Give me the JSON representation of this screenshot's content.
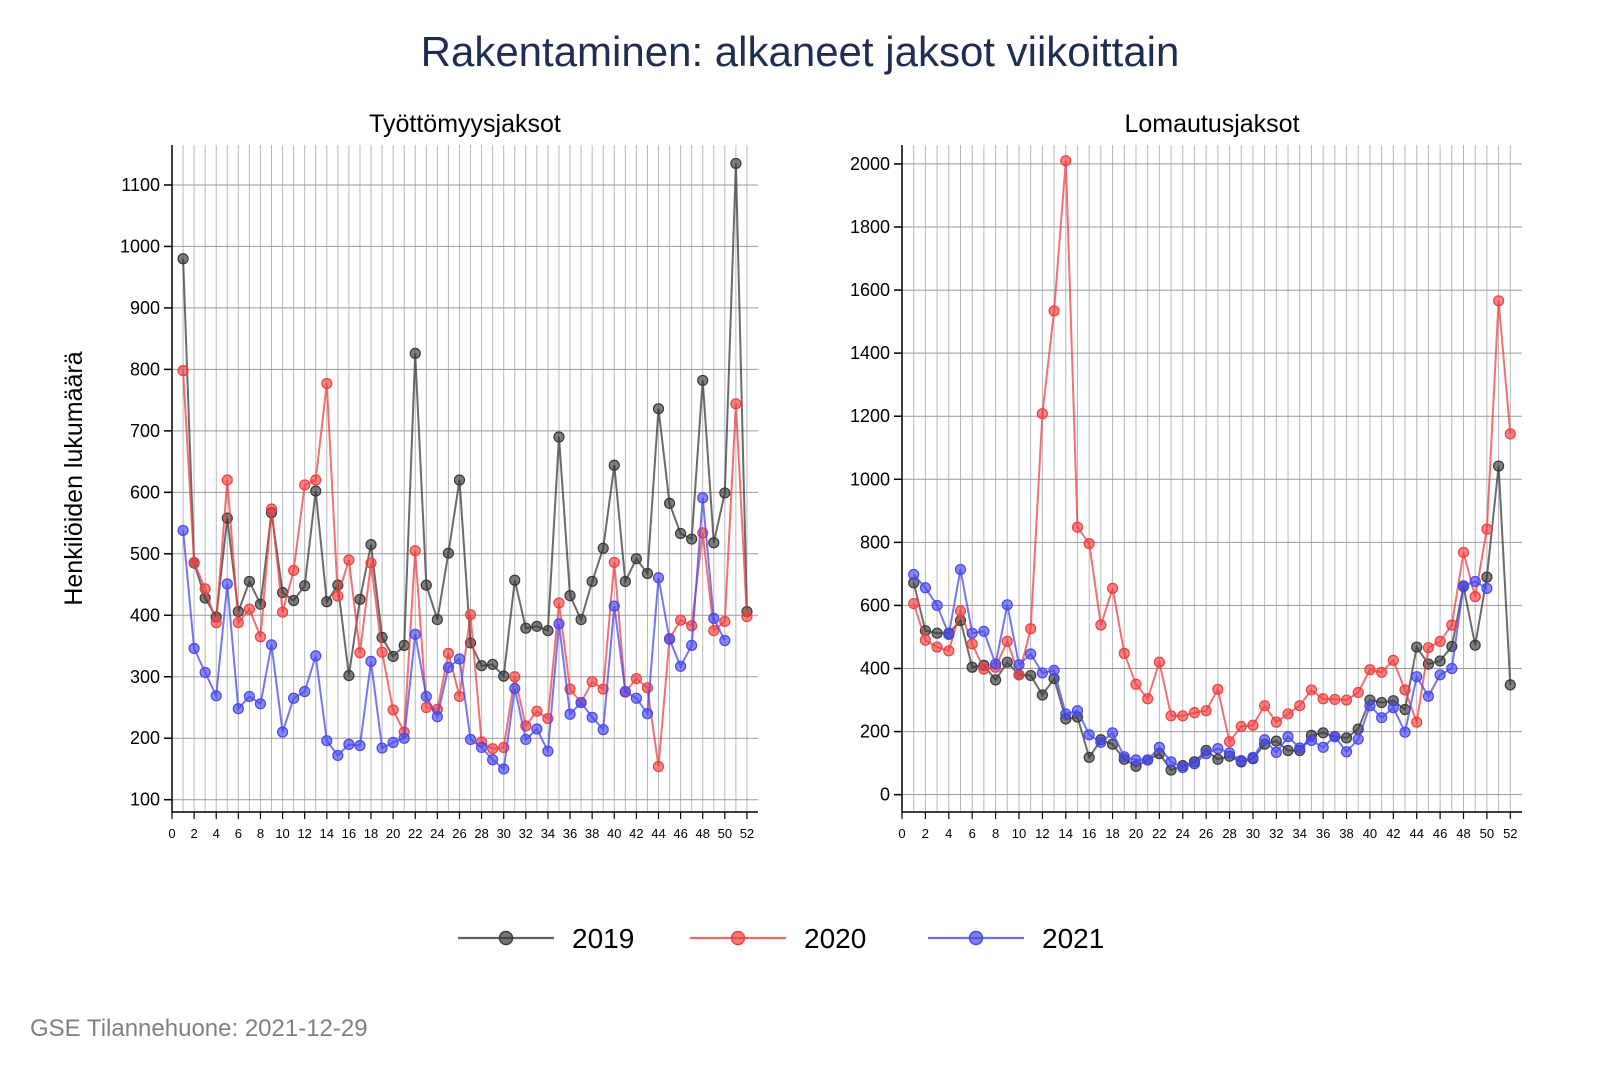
{
  "title": "Rakentaminen: alkaneet jaksot viikoittain",
  "footer": "GSE Tilannehuone: 2021-12-29",
  "colors": {
    "2019": "#3a3a3a",
    "2020": "#f04040",
    "2021": "#4848f0",
    "title": "#1f2d55"
  },
  "chart_data": [
    {
      "type": "line",
      "title": "Työttömyysjaksot",
      "xlabel": "",
      "ylabel": "Henkilöiden lukumäärä",
      "xlim": [
        0,
        53
      ],
      "ylim": [
        80,
        1165
      ],
      "xticks": [
        0,
        2,
        4,
        6,
        8,
        10,
        12,
        14,
        16,
        18,
        20,
        22,
        24,
        26,
        28,
        30,
        32,
        34,
        36,
        38,
        40,
        42,
        44,
        46,
        48,
        50,
        52
      ],
      "yticks": [
        100,
        200,
        300,
        400,
        500,
        600,
        700,
        800,
        900,
        1000,
        1100
      ],
      "grid": true,
      "series": [
        {
          "name": "2019",
          "x": [
            1,
            2,
            3,
            4,
            5,
            6,
            7,
            8,
            9,
            10,
            11,
            12,
            13,
            14,
            15,
            16,
            17,
            18,
            19,
            20,
            21,
            22,
            23,
            24,
            25,
            26,
            27,
            28,
            29,
            30,
            31,
            32,
            33,
            34,
            35,
            36,
            37,
            38,
            39,
            40,
            41,
            42,
            43,
            44,
            45,
            46,
            47,
            48,
            49,
            50,
            51,
            52
          ],
          "values": [
            980,
            485,
            428,
            397,
            558,
            406,
            455,
            418,
            567,
            437,
            424,
            448,
            602,
            422,
            449,
            302,
            426,
            515,
            364,
            333,
            351,
            826,
            449,
            393,
            501,
            620,
            355,
            318,
            320,
            301,
            457,
            379,
            382,
            375,
            690,
            432,
            393,
            455,
            509,
            644,
            455,
            492,
            468,
            736,
            582,
            533,
            524,
            782,
            518,
            599,
            1135,
            406
          ]
        },
        {
          "name": "2020",
          "x": [
            1,
            2,
            3,
            4,
            5,
            6,
            7,
            8,
            9,
            10,
            11,
            12,
            13,
            14,
            15,
            16,
            17,
            18,
            19,
            20,
            21,
            22,
            23,
            24,
            25,
            26,
            27,
            28,
            29,
            30,
            31,
            32,
            33,
            34,
            35,
            36,
            37,
            38,
            39,
            40,
            41,
            42,
            43,
            44,
            45,
            46,
            47,
            48,
            49,
            50,
            51,
            52
          ],
          "values": [
            798,
            486,
            443,
            388,
            620,
            388,
            410,
            365,
            573,
            405,
            473,
            612,
            620,
            777,
            431,
            490,
            339,
            485,
            340,
            246,
            210,
            505,
            250,
            247,
            338,
            268,
            401,
            194,
            183,
            185,
            300,
            220,
            244,
            232,
            420,
            280,
            258,
            292,
            280,
            486,
            275,
            297,
            282,
            154,
            362,
            392,
            383,
            534,
            375,
            390,
            744,
            398
          ]
        },
        {
          "name": "2021",
          "x": [
            1,
            2,
            3,
            4,
            5,
            6,
            7,
            8,
            9,
            10,
            11,
            12,
            13,
            14,
            15,
            16,
            17,
            18,
            19,
            20,
            21,
            22,
            23,
            24,
            25,
            26,
            27,
            28,
            29,
            30,
            31,
            32,
            33,
            34,
            35,
            36,
            37,
            38,
            39,
            40,
            41,
            42,
            43,
            44,
            45,
            46,
            47,
            48,
            49,
            50
          ],
          "values": [
            538,
            346,
            307,
            269,
            451,
            248,
            268,
            256,
            352,
            210,
            265,
            276,
            334,
            196,
            172,
            190,
            188,
            325,
            184,
            193,
            200,
            369,
            268,
            235,
            315,
            329,
            198,
            185,
            165,
            150,
            281,
            198,
            215,
            179,
            386,
            239,
            258,
            234,
            214,
            415,
            276,
            265,
            240,
            461,
            361,
            317,
            351,
            591,
            395,
            359
          ]
        }
      ]
    },
    {
      "type": "line",
      "title": "Lomautusjaksot",
      "xlabel": "",
      "ylabel": "",
      "xlim": [
        0,
        53
      ],
      "ylim": [
        -55,
        2060
      ],
      "xticks": [
        0,
        2,
        4,
        6,
        8,
        10,
        12,
        14,
        16,
        18,
        20,
        22,
        24,
        26,
        28,
        30,
        32,
        34,
        36,
        38,
        40,
        42,
        44,
        46,
        48,
        50,
        52
      ],
      "yticks": [
        0,
        200,
        400,
        600,
        800,
        1000,
        1200,
        1400,
        1600,
        1800,
        2000
      ],
      "grid": true,
      "series": [
        {
          "name": "2019",
          "x": [
            1,
            2,
            3,
            4,
            5,
            6,
            7,
            8,
            9,
            10,
            11,
            12,
            13,
            14,
            15,
            16,
            17,
            18,
            19,
            20,
            21,
            22,
            23,
            24,
            25,
            26,
            27,
            28,
            29,
            30,
            31,
            32,
            33,
            34,
            35,
            36,
            37,
            38,
            39,
            40,
            41,
            42,
            43,
            44,
            45,
            46,
            47,
            48,
            49,
            50,
            51,
            52
          ],
          "values": [
            672,
            520,
            512,
            512,
            552,
            404,
            410,
            364,
            420,
            380,
            378,
            316,
            368,
            240,
            246,
            118,
            174,
            160,
            112,
            90,
            110,
            130,
            78,
            92,
            104,
            140,
            112,
            122,
            104,
            114,
            160,
            170,
            140,
            140,
            188,
            196,
            184,
            180,
            208,
            300,
            292,
            298,
            270,
            468,
            414,
            424,
            470,
            660,
            474,
            690,
            1042,
            348
          ]
        },
        {
          "name": "2020",
          "x": [
            1,
            2,
            3,
            4,
            5,
            6,
            7,
            8,
            9,
            10,
            11,
            12,
            13,
            14,
            15,
            16,
            17,
            18,
            19,
            20,
            21,
            22,
            23,
            24,
            25,
            26,
            27,
            28,
            29,
            30,
            31,
            32,
            33,
            34,
            35,
            36,
            37,
            38,
            39,
            40,
            41,
            42,
            43,
            44,
            45,
            46,
            47,
            48,
            49,
            50,
            51,
            52
          ],
          "values": [
            606,
            490,
            468,
            456,
            582,
            478,
            398,
            404,
            486,
            380,
            526,
            1208,
            1534,
            2010,
            848,
            796,
            538,
            654,
            448,
            350,
            304,
            420,
            250,
            250,
            260,
            266,
            334,
            168,
            216,
            220,
            282,
            230,
            256,
            282,
            332,
            304,
            302,
            300,
            324,
            396,
            388,
            426,
            332,
            230,
            466,
            486,
            538,
            768,
            628,
            842,
            1566,
            1144
          ]
        },
        {
          "name": "2021",
          "x": [
            1,
            2,
            3,
            4,
            5,
            6,
            7,
            8,
            9,
            10,
            11,
            12,
            13,
            14,
            15,
            16,
            17,
            18,
            19,
            20,
            21,
            22,
            23,
            24,
            25,
            26,
            27,
            28,
            29,
            30,
            31,
            32,
            33,
            34,
            35,
            36,
            37,
            38,
            39,
            40,
            41,
            42,
            43,
            44,
            45,
            46,
            47,
            48,
            49,
            50
          ],
          "values": [
            698,
            656,
            600,
            508,
            714,
            512,
            518,
            414,
            602,
            412,
            446,
            386,
            394,
            256,
            266,
            190,
            166,
            196,
            120,
            110,
            110,
            150,
            104,
            86,
            98,
            130,
            146,
            132,
            108,
            118,
            174,
            134,
            184,
            148,
            172,
            150,
            184,
            136,
            176,
            282,
            244,
            276,
            198,
            374,
            312,
            380,
            400,
            662,
            676,
            654
          ]
        }
      ]
    }
  ],
  "legend": [
    {
      "label": "2019"
    },
    {
      "label": "2020"
    },
    {
      "label": "2021"
    }
  ]
}
